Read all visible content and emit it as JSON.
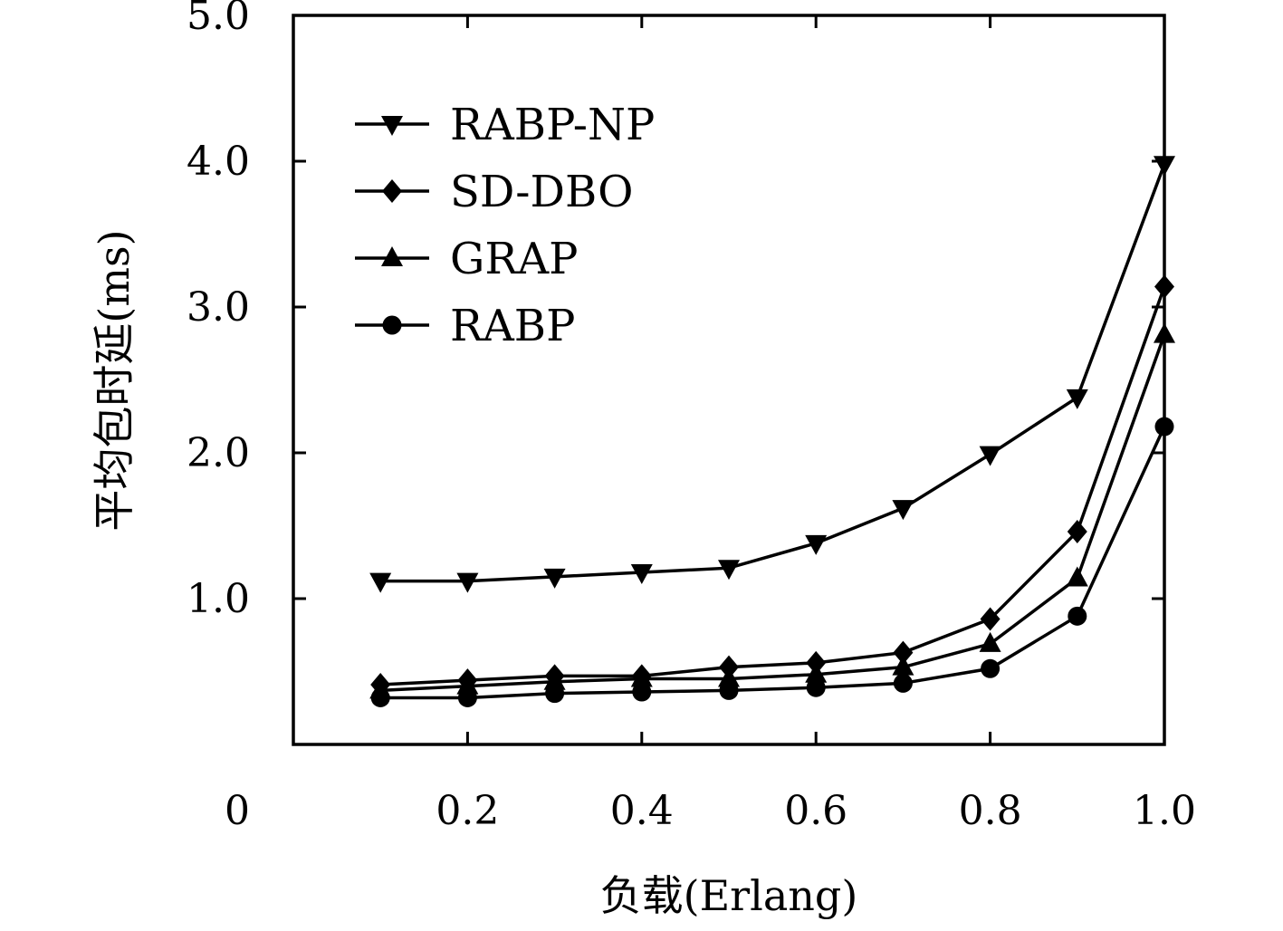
{
  "chart_data": {
    "type": "line",
    "title": "",
    "xlabel": "负载(Erlang)",
    "ylabel": "平均包时延(ms)",
    "xlim": [
      0.0,
      1.0
    ],
    "ylim": [
      0.0,
      5.0
    ],
    "x_ticks": [
      0.2,
      0.4,
      0.6,
      0.8,
      1.0
    ],
    "x_tick_labels": [
      "0.2",
      "0.4",
      "0.6",
      "0.8",
      "1.0"
    ],
    "y_ticks": [
      1.0,
      2.0,
      3.0,
      4.0,
      5.0
    ],
    "y_tick_labels": [
      "1.0",
      "2.0",
      "3.0",
      "4.0",
      "5.0"
    ],
    "origin_label": "0",
    "grid": false,
    "legend_position": "top-left",
    "x": [
      0.1,
      0.2,
      0.3,
      0.4,
      0.5,
      0.6,
      0.7,
      0.8,
      0.9,
      1.0
    ],
    "series": [
      {
        "name": "RABP-NP",
        "marker": "triangle-down",
        "values": [
          1.12,
          1.12,
          1.15,
          1.18,
          1.21,
          1.38,
          1.62,
          1.99,
          2.38,
          3.98
        ]
      },
      {
        "name": "SD-DBO",
        "marker": "diamond",
        "values": [
          0.41,
          0.44,
          0.47,
          0.47,
          0.53,
          0.56,
          0.63,
          0.86,
          1.46,
          3.14
        ]
      },
      {
        "name": "GRAP",
        "marker": "triangle-up",
        "values": [
          0.37,
          0.4,
          0.43,
          0.45,
          0.45,
          0.48,
          0.53,
          0.69,
          1.14,
          2.81
        ]
      },
      {
        "name": "RABP",
        "marker": "circle",
        "values": [
          0.32,
          0.32,
          0.35,
          0.36,
          0.37,
          0.39,
          0.42,
          0.52,
          0.88,
          2.18
        ]
      }
    ]
  }
}
